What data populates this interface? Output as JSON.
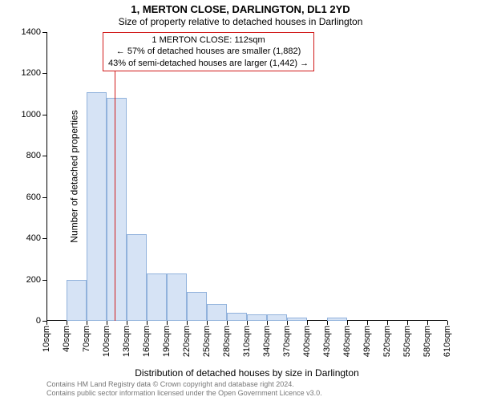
{
  "title": "1, MERTON CLOSE, DARLINGTON, DL1 2YD",
  "subtitle": "Size of property relative to detached houses in Darlington",
  "ylabel": "Number of detached properties",
  "xlabel": "Distribution of detached houses by size in Darlington",
  "chart": {
    "type": "histogram",
    "background_color": "#ffffff",
    "bar_fill": "#d6e3f5",
    "bar_stroke": "#91b2dc",
    "bar_stroke_width": 1,
    "axis_color": "#000000",
    "ylim": [
      0,
      1400
    ],
    "ytick_step": 200,
    "yticks": [
      0,
      200,
      400,
      600,
      800,
      1000,
      1200,
      1400
    ],
    "xtick_labels": [
      "10sqm",
      "40sqm",
      "70sqm",
      "100sqm",
      "130sqm",
      "160sqm",
      "190sqm",
      "220sqm",
      "250sqm",
      "280sqm",
      "310sqm",
      "340sqm",
      "370sqm",
      "400sqm",
      "430sqm",
      "460sqm",
      "490sqm",
      "520sqm",
      "550sqm",
      "580sqm",
      "610sqm"
    ],
    "x_min": 10,
    "x_max": 610,
    "x_bin_width": 30,
    "values": [
      0,
      200,
      1110,
      1080,
      420,
      230,
      230,
      140,
      80,
      40,
      30,
      30,
      15,
      0,
      15,
      0,
      0,
      0,
      0,
      0
    ],
    "label_fontsize": 11,
    "axis_label_fontsize": 12,
    "title_fontsize": 13
  },
  "marker": {
    "x_value": 112,
    "color": "#d11a1a",
    "width": 1
  },
  "info_box": {
    "border_color": "#d11a1a",
    "line1": "1 MERTON CLOSE: 112sqm",
    "line2": "← 57% of detached houses are smaller (1,882)",
    "line3": "43% of semi-detached houses are larger (1,442) →",
    "fontsize": 11
  },
  "credits": {
    "line1": "Contains HM Land Registry data © Crown copyright and database right 2024.",
    "line2": "Contains public sector information licensed under the Open Government Licence v3.0.",
    "color": "#777777",
    "fontsize": 9
  }
}
